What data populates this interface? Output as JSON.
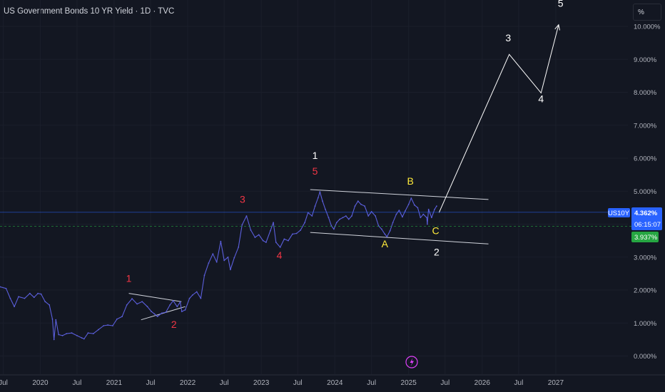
{
  "header": {
    "title": "US Government Bonds 10 YR Yield · 1D · TVC",
    "scale_button": "%"
  },
  "colors": {
    "background": "#131722",
    "price_line": "#5b5fdc",
    "current_tag": "#2962ff",
    "low_tag": "#26a642",
    "wave_red": "#f23645",
    "wave_white": "#ffffff",
    "wave_yellow": "#ffeb3b",
    "projection": "#ffffff",
    "lightning_icon": "#e040fb"
  },
  "price_tags": {
    "symbol": "US10Y",
    "price": "4.362%",
    "countdown": "06:15:07",
    "level": "3.937%"
  },
  "chart_data": {
    "type": "line",
    "title": "US Government Bonds 10 YR Yield",
    "xlim": [
      "2019-06-15",
      "2027-10-15"
    ],
    "ylim": [
      -0.55,
      10.8
    ],
    "y_ticks": [
      "0.000%",
      "1.000%",
      "2.000%",
      "3.000%",
      "4.000%",
      "5.000%",
      "6.000%",
      "7.000%",
      "8.000%",
      "9.000%",
      "10.000%"
    ],
    "y_tick_values": [
      0,
      1,
      2,
      3,
      4,
      5,
      6,
      7,
      8,
      9,
      10
    ],
    "x_ticks": [
      {
        "label": "Jul",
        "date": "2019-07-01"
      },
      {
        "label": "2020",
        "date": "2020-01-01"
      },
      {
        "label": "Jul",
        "date": "2020-07-01"
      },
      {
        "label": "2021",
        "date": "2021-01-01"
      },
      {
        "label": "Jul",
        "date": "2021-07-01"
      },
      {
        "label": "2022",
        "date": "2022-01-01"
      },
      {
        "label": "Jul",
        "date": "2022-07-01"
      },
      {
        "label": "2023",
        "date": "2023-01-01"
      },
      {
        "label": "Jul",
        "date": "2023-07-01"
      },
      {
        "label": "2024",
        "date": "2024-01-01"
      },
      {
        "label": "Jul",
        "date": "2024-07-01"
      },
      {
        "label": "2025",
        "date": "2025-01-01"
      },
      {
        "label": "Jul",
        "date": "2025-07-01"
      },
      {
        "label": "2026",
        "date": "2026-01-01"
      },
      {
        "label": "Jul",
        "date": "2026-07-01"
      },
      {
        "label": "2027",
        "date": "2027-01-01"
      }
    ],
    "series": [
      {
        "name": "US10Y",
        "x": [
          "2019-06-15",
          "2019-07-15",
          "2019-08-05",
          "2019-08-25",
          "2019-09-15",
          "2019-10-15",
          "2019-11-10",
          "2019-12-01",
          "2019-12-20",
          "2020-01-05",
          "2020-01-25",
          "2020-02-15",
          "2020-03-01",
          "2020-03-09",
          "2020-03-18",
          "2020-04-01",
          "2020-04-20",
          "2020-05-10",
          "2020-06-05",
          "2020-07-01",
          "2020-07-25",
          "2020-08-05",
          "2020-08-25",
          "2020-09-20",
          "2020-10-15",
          "2020-11-10",
          "2020-12-01",
          "2020-12-25",
          "2021-01-15",
          "2021-02-10",
          "2021-03-05",
          "2021-03-31",
          "2021-04-25",
          "2021-05-20",
          "2021-06-15",
          "2021-07-05",
          "2021-07-20",
          "2021-08-04",
          "2021-08-25",
          "2021-09-15",
          "2021-10-05",
          "2021-10-21",
          "2021-11-10",
          "2021-11-25",
          "2021-12-03",
          "2021-12-20",
          "2022-01-10",
          "2022-01-25",
          "2022-02-15",
          "2022-03-07",
          "2022-03-25",
          "2022-04-15",
          "2022-05-06",
          "2022-05-25",
          "2022-06-14",
          "2022-07-01",
          "2022-07-20",
          "2022-08-01",
          "2022-08-20",
          "2022-09-10",
          "2022-09-28",
          "2022-10-20",
          "2022-11-10",
          "2022-12-01",
          "2022-12-20",
          "2023-01-10",
          "2023-01-25",
          "2023-02-15",
          "2023-03-02",
          "2023-03-15",
          "2023-04-05",
          "2023-04-25",
          "2023-05-15",
          "2023-06-05",
          "2023-06-25",
          "2023-07-15",
          "2023-08-05",
          "2023-08-21",
          "2023-09-10",
          "2023-09-25",
          "2023-10-10",
          "2023-10-19",
          "2023-11-01",
          "2023-11-15",
          "2023-12-01",
          "2023-12-15",
          "2023-12-27",
          "2024-01-10",
          "2024-01-25",
          "2024-02-10",
          "2024-02-25",
          "2024-03-10",
          "2024-03-25",
          "2024-04-10",
          "2024-04-25",
          "2024-05-10",
          "2024-05-28",
          "2024-06-15",
          "2024-07-01",
          "2024-07-20",
          "2024-08-05",
          "2024-08-20",
          "2024-09-05",
          "2024-09-16",
          "2024-10-01",
          "2024-10-15",
          "2024-11-01",
          "2024-11-15",
          "2024-12-01",
          "2024-12-15",
          "2025-01-01",
          "2025-01-14",
          "2025-01-30",
          "2025-02-15",
          "2025-03-01",
          "2025-03-15",
          "2025-04-01",
          "2025-04-04",
          "2025-04-10",
          "2025-04-25",
          "2025-05-10",
          "2025-05-20"
        ],
        "values": [
          2.1,
          2.05,
          1.75,
          1.5,
          1.8,
          1.75,
          1.9,
          1.78,
          1.9,
          1.88,
          1.65,
          1.55,
          1.12,
          0.5,
          1.1,
          0.65,
          0.62,
          0.68,
          0.7,
          0.62,
          0.55,
          0.52,
          0.7,
          0.68,
          0.8,
          0.92,
          0.94,
          0.92,
          1.12,
          1.2,
          1.55,
          1.74,
          1.58,
          1.65,
          1.5,
          1.35,
          1.28,
          1.2,
          1.3,
          1.33,
          1.55,
          1.68,
          1.5,
          1.64,
          1.35,
          1.4,
          1.75,
          1.85,
          1.95,
          1.75,
          2.45,
          2.82,
          3.1,
          2.85,
          3.48,
          2.9,
          3.0,
          2.62,
          2.98,
          3.3,
          3.98,
          4.25,
          3.82,
          3.6,
          3.68,
          3.5,
          3.45,
          3.8,
          4.05,
          3.45,
          3.3,
          3.55,
          3.5,
          3.7,
          3.72,
          3.82,
          4.05,
          4.35,
          4.25,
          4.55,
          4.8,
          4.98,
          4.7,
          4.45,
          4.2,
          3.95,
          3.85,
          4.05,
          4.15,
          4.2,
          4.25,
          4.15,
          4.25,
          4.55,
          4.7,
          4.6,
          4.55,
          4.25,
          4.38,
          4.25,
          3.95,
          3.85,
          3.7,
          3.62,
          3.8,
          4.05,
          4.3,
          4.42,
          4.22,
          4.4,
          4.6,
          4.79,
          4.58,
          4.5,
          4.2,
          4.3,
          4.2,
          4.0,
          4.45,
          4.2,
          4.45,
          4.55
        ]
      }
    ],
    "trendlines": [
      {
        "x": [
          "2021-03-15",
          "2021-12-01"
        ],
        "values": [
          1.9,
          1.65
        ]
      },
      {
        "x": [
          "2021-05-15",
          "2021-12-20"
        ],
        "values": [
          1.1,
          1.5
        ]
      },
      {
        "x": [
          "2023-09-01",
          "2026-02-01"
        ],
        "values": [
          5.05,
          4.75
        ]
      },
      {
        "x": [
          "2023-09-01",
          "2026-02-01"
        ],
        "values": [
          3.75,
          3.4
        ]
      }
    ],
    "projection": {
      "x": [
        "2025-06-01",
        "2026-05-15",
        "2026-10-20",
        "2027-01-15"
      ],
      "values": [
        4.35,
        9.15,
        7.98,
        10.05
      ]
    },
    "wave_labels": [
      {
        "text": "1",
        "color": "red",
        "x": "2021-03-15",
        "y": 2.25
      },
      {
        "text": "2",
        "color": "red",
        "x": "2021-10-25",
        "y": 0.85
      },
      {
        "text": "3",
        "color": "red",
        "x": "2022-09-30",
        "y": 4.65
      },
      {
        "text": "4",
        "color": "red",
        "x": "2023-04-01",
        "y": 2.95
      },
      {
        "text": "5",
        "color": "red",
        "x": "2023-09-25",
        "y": 5.5
      },
      {
        "text": "1",
        "color": "white",
        "x": "2023-09-25",
        "y": 5.98
      },
      {
        "text": "A",
        "color": "yellow",
        "x": "2024-09-05",
        "y": 3.3
      },
      {
        "text": "B",
        "color": "yellow",
        "x": "2025-01-10",
        "y": 5.2
      },
      {
        "text": "C",
        "color": "yellow",
        "x": "2025-05-15",
        "y": 3.7
      },
      {
        "text": "2",
        "color": "white",
        "x": "2025-05-20",
        "y": 3.05
      },
      {
        "text": "3",
        "color": "white",
        "x": "2026-05-10",
        "y": 9.55
      },
      {
        "text": "4",
        "color": "white",
        "x": "2026-10-20",
        "y": 7.7
      },
      {
        "text": "5",
        "color": "white",
        "x": "2027-01-25",
        "y": 10.6
      }
    ]
  }
}
